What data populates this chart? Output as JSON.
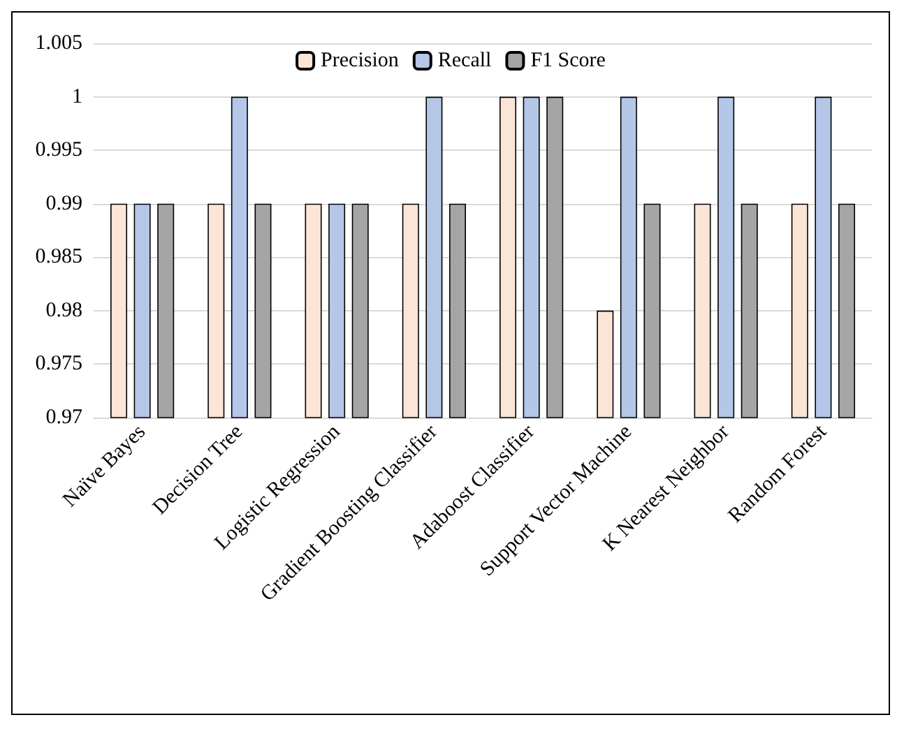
{
  "chart_data": {
    "type": "bar",
    "categories": [
      "Naïve Bayes",
      "Decision Tree",
      "Logistic Regression",
      "Gradient Boosting Classifier",
      "Adaboost Classifier",
      "Support Vector Machine",
      "K Nearest Neighbor",
      "Random Forest"
    ],
    "series": [
      {
        "name": "Precision",
        "color": "#fbe5d6",
        "values": [
          0.99,
          0.99,
          0.99,
          0.99,
          1,
          0.98,
          0.99,
          0.99
        ]
      },
      {
        "name": "Recall",
        "color": "#b4c7e7",
        "values": [
          0.99,
          1,
          0.99,
          1,
          1,
          1,
          1,
          1
        ]
      },
      {
        "name": "F1 Score",
        "color": "#a5a5a5",
        "values": [
          0.99,
          0.99,
          0.99,
          0.99,
          1,
          0.99,
          0.99,
          0.99
        ]
      }
    ],
    "ylim": [
      0.97,
      1.005
    ],
    "yticks": [
      0.97,
      0.975,
      0.98,
      0.985,
      0.99,
      0.995,
      1,
      1.005
    ],
    "grid": "y",
    "legend": "top"
  }
}
